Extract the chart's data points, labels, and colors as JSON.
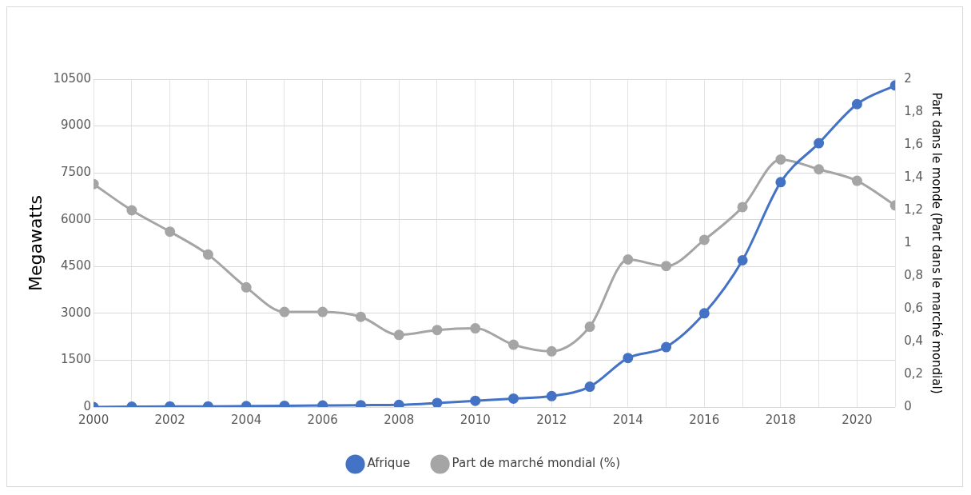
{
  "chart_data": {
    "type": "line",
    "ylabel": "Megawatts",
    "y2label": "Part dans le monde (Part dans le marché mondial)",
    "x": [
      2000,
      2001,
      2002,
      2003,
      2004,
      2005,
      2006,
      2007,
      2008,
      2009,
      2010,
      2011,
      2012,
      2013,
      2014,
      2015,
      2016,
      2017,
      2018,
      2019,
      2020,
      2021
    ],
    "series": [
      {
        "name": "Afrique",
        "color": "#4472c4",
        "values": [
          0,
          10,
          20,
          20,
          30,
          40,
          50,
          60,
          70,
          130,
          200,
          270,
          350,
          650,
          1570,
          1920,
          3000,
          4700,
          7200,
          8450,
          9700,
          10300
        ]
      },
      {
        "name": "Part de marché mondial (%)",
        "color": "#a5a5a5",
        "axis": "y2",
        "values": [
          1.36,
          1.2,
          1.07,
          0.93,
          0.73,
          0.58,
          0.58,
          0.55,
          0.44,
          0.47,
          0.48,
          0.38,
          0.34,
          0.49,
          0.9,
          0.86,
          1.02,
          1.22,
          1.51,
          1.45,
          1.38,
          1.23
        ]
      }
    ],
    "xlim": [
      2000,
      2021
    ],
    "xticks": [
      2000,
      {
        "value": 2001,
        "label": null
      },
      2002,
      {
        "value": 2003,
        "label": null
      },
      2004,
      {
        "value": 2005,
        "label": null
      },
      2006,
      {
        "value": 2007,
        "label": null
      },
      2008,
      {
        "value": 2009,
        "label": null
      },
      2010,
      {
        "value": 2011,
        "label": null
      },
      2012,
      {
        "value": 2013,
        "label": null
      },
      2014,
      {
        "value": 2015,
        "label": null
      },
      2016,
      {
        "value": 2017,
        "label": null
      },
      2018,
      {
        "value": 2019,
        "label": null
      },
      2020,
      {
        "value": 2021,
        "label": null
      }
    ],
    "ylim": [
      0,
      10500
    ],
    "yticks": [
      0,
      1500,
      3000,
      4500,
      6000,
      7500,
      9000,
      10500
    ],
    "y2lim": [
      0,
      2
    ],
    "y2ticks": [
      0,
      {
        "value": 0.2,
        "label": "0,2"
      },
      {
        "value": 0.4,
        "label": "0,4"
      },
      {
        "value": 0.6,
        "label": "0,6"
      },
      {
        "value": 0.8,
        "label": "0,8"
      },
      1,
      {
        "value": 1.2,
        "label": "1,2"
      },
      {
        "value": 1.4,
        "label": "1,4"
      },
      {
        "value": 1.6,
        "label": "1,6"
      },
      {
        "value": 1.8,
        "label": "1,8"
      },
      2
    ],
    "grid": true,
    "legend": "bottom",
    "marker": "circle",
    "line_style": "solid"
  }
}
